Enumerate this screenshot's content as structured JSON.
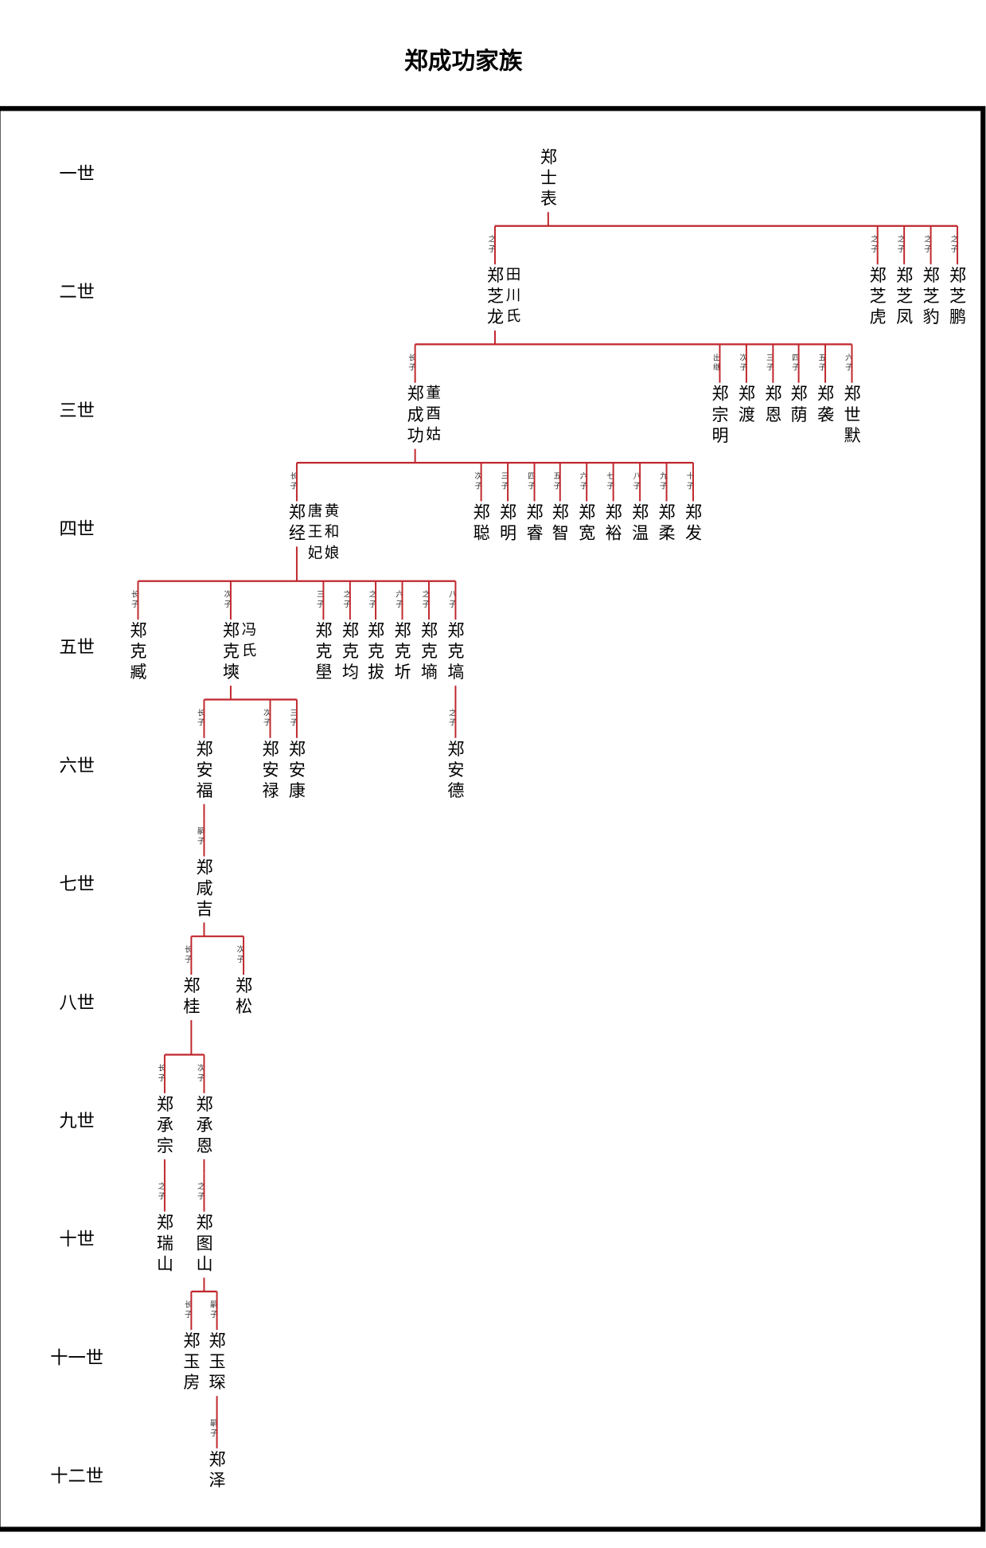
{
  "header": {
    "title": "郑成功家族"
  },
  "generations": [
    "一世",
    "二世",
    "三世",
    "四世",
    "五世",
    "六世",
    "七世",
    "八世",
    "九世",
    "十世",
    "十一世",
    "十二世"
  ],
  "tree": {
    "name": "郑士表",
    "children": [
      {
        "relation": "之子",
        "name": "郑芝龙",
        "spouse": [
          "田川氏"
        ],
        "children": [
          {
            "relation": "长子",
            "name": "郑成功",
            "spouse": [
              "董酉姑"
            ],
            "children": [
              {
                "relation": "长子",
                "name": "郑经",
                "spouse": [
                  "唐王妃",
                  "黄和娘"
                ],
                "children": [
                  {
                    "relation": "长子",
                    "name": "郑克臧"
                  },
                  {
                    "relation": "次子",
                    "name": "郑克塽",
                    "spouse": [
                      "冯氏"
                    ],
                    "children": [
                      {
                        "relation": "长子",
                        "name": "郑安福",
                        "children": [
                          {
                            "relation": "嗣子",
                            "name": "郑咸吉",
                            "children": [
                              {
                                "relation": "长子",
                                "name": "郑桂",
                                "children": [
                                  {
                                    "relation": "长子",
                                    "name": "郑承宗",
                                    "children": [
                                      {
                                        "relation": "之子",
                                        "name": "郑瑞山"
                                      }
                                    ]
                                  },
                                  {
                                    "relation": "次子",
                                    "name": "郑承恩",
                                    "children": [
                                      {
                                        "relation": "之子",
                                        "name": "郑图山",
                                        "children": [
                                          {
                                            "relation": "长子",
                                            "name": "郑玉房"
                                          },
                                          {
                                            "relation": "嗣子",
                                            "name": "郑玉琛",
                                            "children": [
                                              {
                                                "relation": "嗣子",
                                                "name": "郑泽"
                                              }
                                            ]
                                          }
                                        ]
                                      }
                                    ]
                                  }
                                ]
                              },
                              {
                                "relation": "次子",
                                "name": "郑松"
                              }
                            ]
                          }
                        ]
                      },
                      {
                        "relation": "次子",
                        "name": "郑安禄"
                      },
                      {
                        "relation": "三子",
                        "name": "郑安康"
                      }
                    ]
                  },
                  {
                    "relation": "三子",
                    "name": "郑克壆"
                  },
                  {
                    "relation": "之子",
                    "name": "郑克均"
                  },
                  {
                    "relation": "之子",
                    "name": "郑克拔"
                  },
                  {
                    "relation": "六子",
                    "name": "郑克圻"
                  },
                  {
                    "relation": "之子",
                    "name": "郑克墒"
                  },
                  {
                    "relation": "八子",
                    "name": "郑克塙",
                    "children": [
                      {
                        "relation": "之子",
                        "name": "郑安德"
                      }
                    ]
                  }
                ]
              },
              {
                "relation": "次子",
                "name": "郑聪"
              },
              {
                "relation": "三子",
                "name": "郑明"
              },
              {
                "relation": "四子",
                "name": "郑睿"
              },
              {
                "relation": "五子",
                "name": "郑智"
              },
              {
                "relation": "六子",
                "name": "郑宽"
              },
              {
                "relation": "七子",
                "name": "郑裕"
              },
              {
                "relation": "八子",
                "name": "郑温"
              },
              {
                "relation": "九子",
                "name": "郑柔"
              },
              {
                "relation": "十子",
                "name": "郑发"
              }
            ]
          },
          {
            "relation": "出继",
            "name": "郑宗明"
          },
          {
            "relation": "次子",
            "name": "郑渡"
          },
          {
            "relation": "三子",
            "name": "郑恩"
          },
          {
            "relation": "四子",
            "name": "郑荫"
          },
          {
            "relation": "五子",
            "name": "郑袭"
          },
          {
            "relation": "六子",
            "name": "郑世默"
          }
        ]
      },
      {
        "relation": "之子",
        "name": "郑芝虎"
      },
      {
        "relation": "之子",
        "name": "郑芝凤"
      },
      {
        "relation": "之子",
        "name": "郑芝豹"
      },
      {
        "relation": "之子",
        "name": "郑芝鹏"
      }
    ]
  }
}
